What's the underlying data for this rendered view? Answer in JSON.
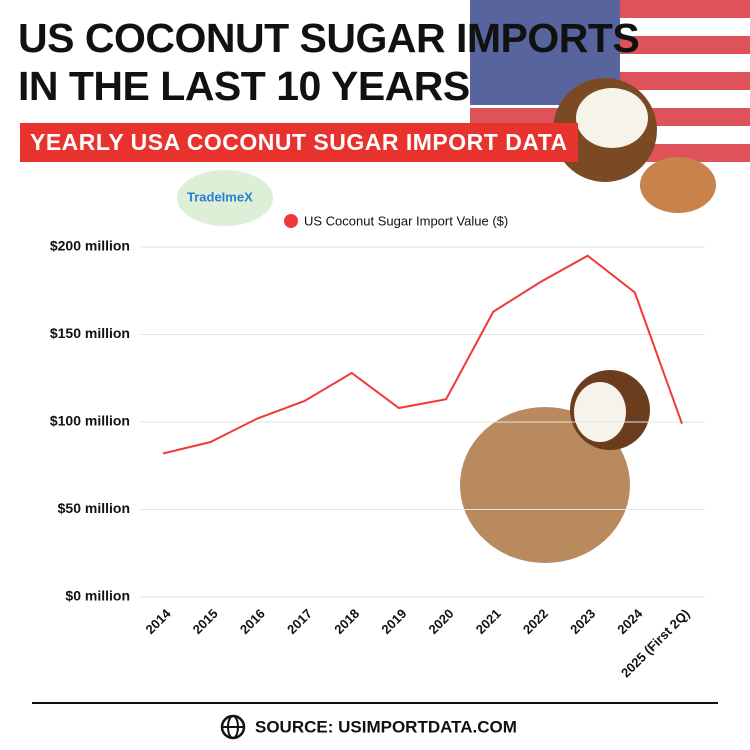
{
  "chart_data": {
    "type": "line",
    "title": "US COCONUT SUGAR IMPORTS IN THE LAST 10 YEARS",
    "subtitle": "YEARLY USA COCONUT SUGAR IMPORT DATA",
    "logo": "TradeImeX",
    "source": "SOURCE: USIMPORTDATA.COM",
    "categories": [
      "2014",
      "2015",
      "2016",
      "2017",
      "2018",
      "2019",
      "2020",
      "2021",
      "2022",
      "2023",
      "2024",
      "2025 (First 2Q)"
    ],
    "series": [
      {
        "name": "US Coconut Sugar Import Value ($)",
        "color": "#f03a3a",
        "values": [
          82,
          88.5,
          102,
          112,
          128,
          108,
          113,
          163,
          180,
          195,
          174,
          99
        ]
      }
    ],
    "ylim": [
      0,
      200
    ],
    "yticks": [
      {
        "value": 0,
        "label": "$0 million"
      },
      {
        "value": 50,
        "label": "$50 million"
      },
      {
        "value": 100,
        "label": "$100 million"
      },
      {
        "value": 150,
        "label": "$150 million"
      },
      {
        "value": 200,
        "label": "$200 million"
      }
    ],
    "grid": true
  }
}
